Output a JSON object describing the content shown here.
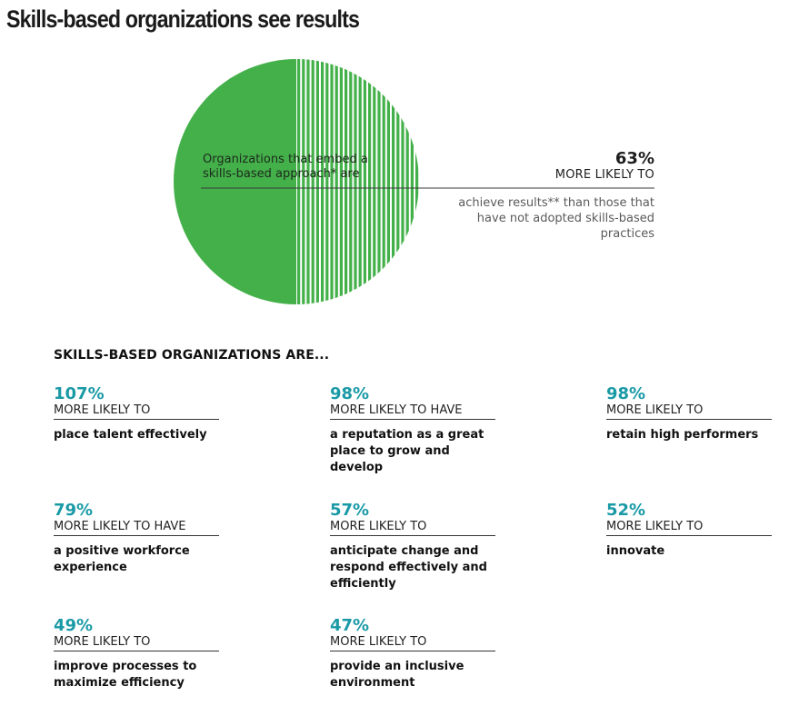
{
  "title": "Skills-based organizations see results",
  "hero": {
    "left_text": "Organizations that embed a skills-based approach* are",
    "percent": "63%",
    "percent_value": 63,
    "subhead": "MORE LIKELY TO",
    "description": "achieve results** than those that have not adopted skills-based practices"
  },
  "section_heading": "SKILLS-BASED ORGANIZATIONS ARE...",
  "colors": {
    "accent": "#1a9aa6",
    "circle_green": "#43b049",
    "text_dark": "#111111",
    "text_gray": "#5a5a5a"
  },
  "stats": [
    {
      "percent": "107%",
      "subhead": "MORE LIKELY TO",
      "description": "place talent effectively"
    },
    {
      "percent": "98%",
      "subhead": "MORE LIKELY TO HAVE",
      "description": "a reputation as a great place to grow and develop"
    },
    {
      "percent": "98%",
      "subhead": "MORE LIKELY TO",
      "description": "retain high performers"
    },
    {
      "percent": "79%",
      "subhead": "MORE LIKELY TO HAVE",
      "description": "a positive workforce experience"
    },
    {
      "percent": "57%",
      "subhead": "MORE LIKELY TO",
      "description": "anticipate change and respond effectively and efficiently"
    },
    {
      "percent": "52%",
      "subhead": "MORE LIKELY TO",
      "description": "innovate"
    },
    {
      "percent": "49%",
      "subhead": "MORE LIKELY TO",
      "description": "improve processes to maximize efficiency"
    },
    {
      "percent": "47%",
      "subhead": "MORE LIKELY TO",
      "description": "provide an inclusive environment"
    }
  ],
  "chart_data": {
    "type": "pie",
    "title": "Skills-based organizations see results",
    "slices": [
      {
        "label": "solid",
        "value": 50,
        "fill": "solid"
      },
      {
        "label": "striped",
        "value": 50,
        "fill": "striped"
      }
    ],
    "highlight_value": 63
  }
}
